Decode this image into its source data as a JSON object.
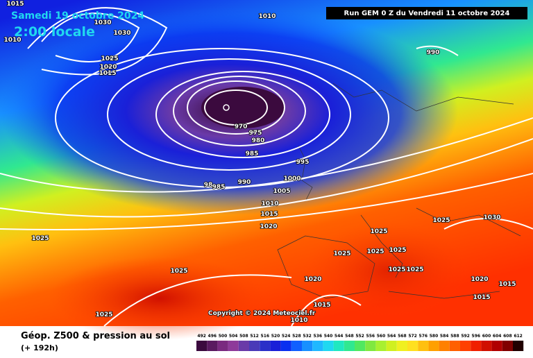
{
  "header": {
    "date": "Samedi 19 octobre 2024",
    "time": "2:00 locale",
    "run": "Run GEM 0 Z du Vendredi 11 octobre 2024"
  },
  "copyright": "Copyright © 2024 Meteociel.fr",
  "footer": {
    "title": "Géop. Z500 & pression au sol",
    "lead": "(+ 192h)"
  },
  "isobar_labels": [
    "1015",
    "1010",
    "1030",
    "1030",
    "1025",
    "1020",
    "1015",
    "1010",
    "990",
    "970",
    "975",
    "980",
    "985",
    "995",
    "1000",
    "1005",
    "990",
    "98",
    "985",
    "1010",
    "1015",
    "1020",
    "1025",
    "1025",
    "1025",
    "1020",
    "1015",
    "1010",
    "1025",
    "1025",
    "1025",
    "1025",
    "1025",
    "1025",
    "1025",
    "1030",
    "1020",
    "1015",
    "1015"
  ],
  "scale": {
    "values": [
      492,
      496,
      500,
      504,
      508,
      512,
      516,
      520,
      524,
      528,
      532,
      536,
      540,
      544,
      548,
      552,
      556,
      560,
      564,
      568,
      572,
      576,
      580,
      584,
      588,
      592,
      596,
      600,
      604,
      608,
      612
    ],
    "colors": [
      "#3b0a3e",
      "#5a1a60",
      "#7a2a80",
      "#8e3a9a",
      "#6a3aa8",
      "#4a3ab8",
      "#2a30c8",
      "#1a20d8",
      "#0a30f0",
      "#1060ff",
      "#1890ff",
      "#20b8ff",
      "#20d8f0",
      "#20e8c0",
      "#30e890",
      "#50e860",
      "#80e840",
      "#a8f030",
      "#d0f020",
      "#f0f020",
      "#ffe020",
      "#ffc010",
      "#ffa000",
      "#ff8000",
      "#ff6000",
      "#ff4000",
      "#f02000",
      "#d01000",
      "#b00000",
      "#800000",
      "#200000"
    ]
  }
}
